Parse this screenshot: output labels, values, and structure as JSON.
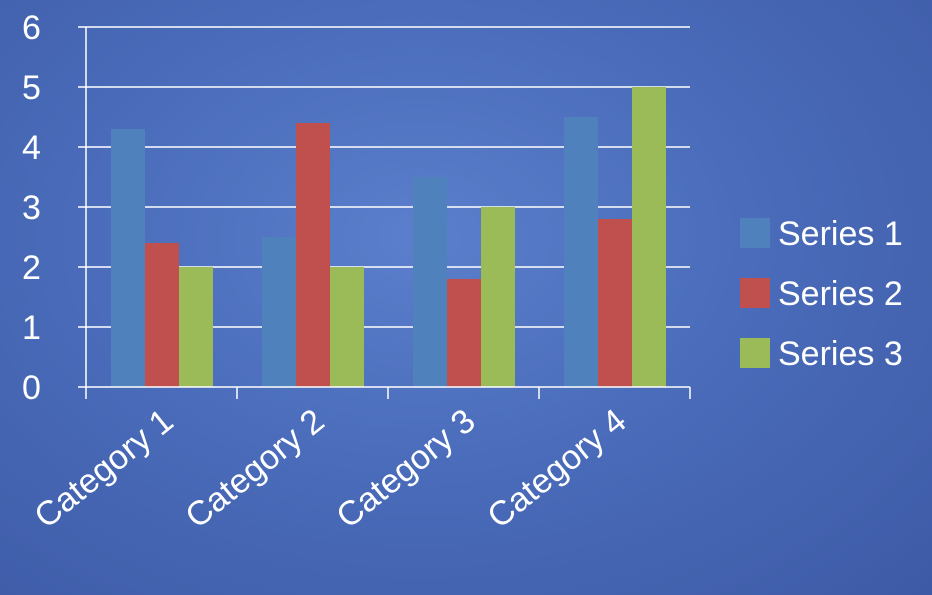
{
  "chart_data": {
    "type": "bar",
    "categories": [
      "Category 1",
      "Category 2",
      "Category 3",
      "Category 4"
    ],
    "series": [
      {
        "name": "Series 1",
        "values": [
          4.3,
          2.5,
          3.5,
          4.5
        ],
        "color": "#4f81bd"
      },
      {
        "name": "Series 2",
        "values": [
          2.4,
          4.4,
          1.8,
          2.8
        ],
        "color": "#c0504d"
      },
      {
        "name": "Series 3",
        "values": [
          2.0,
          2.0,
          3.0,
          5.0
        ],
        "color": "#9bbb59"
      }
    ],
    "y_ticks": [
      "0",
      "1",
      "2",
      "3",
      "4",
      "5",
      "6"
    ],
    "ylim": [
      0,
      6
    ],
    "grid": true,
    "legend_position": "right",
    "title": "",
    "xlabel": "",
    "ylabel": ""
  }
}
